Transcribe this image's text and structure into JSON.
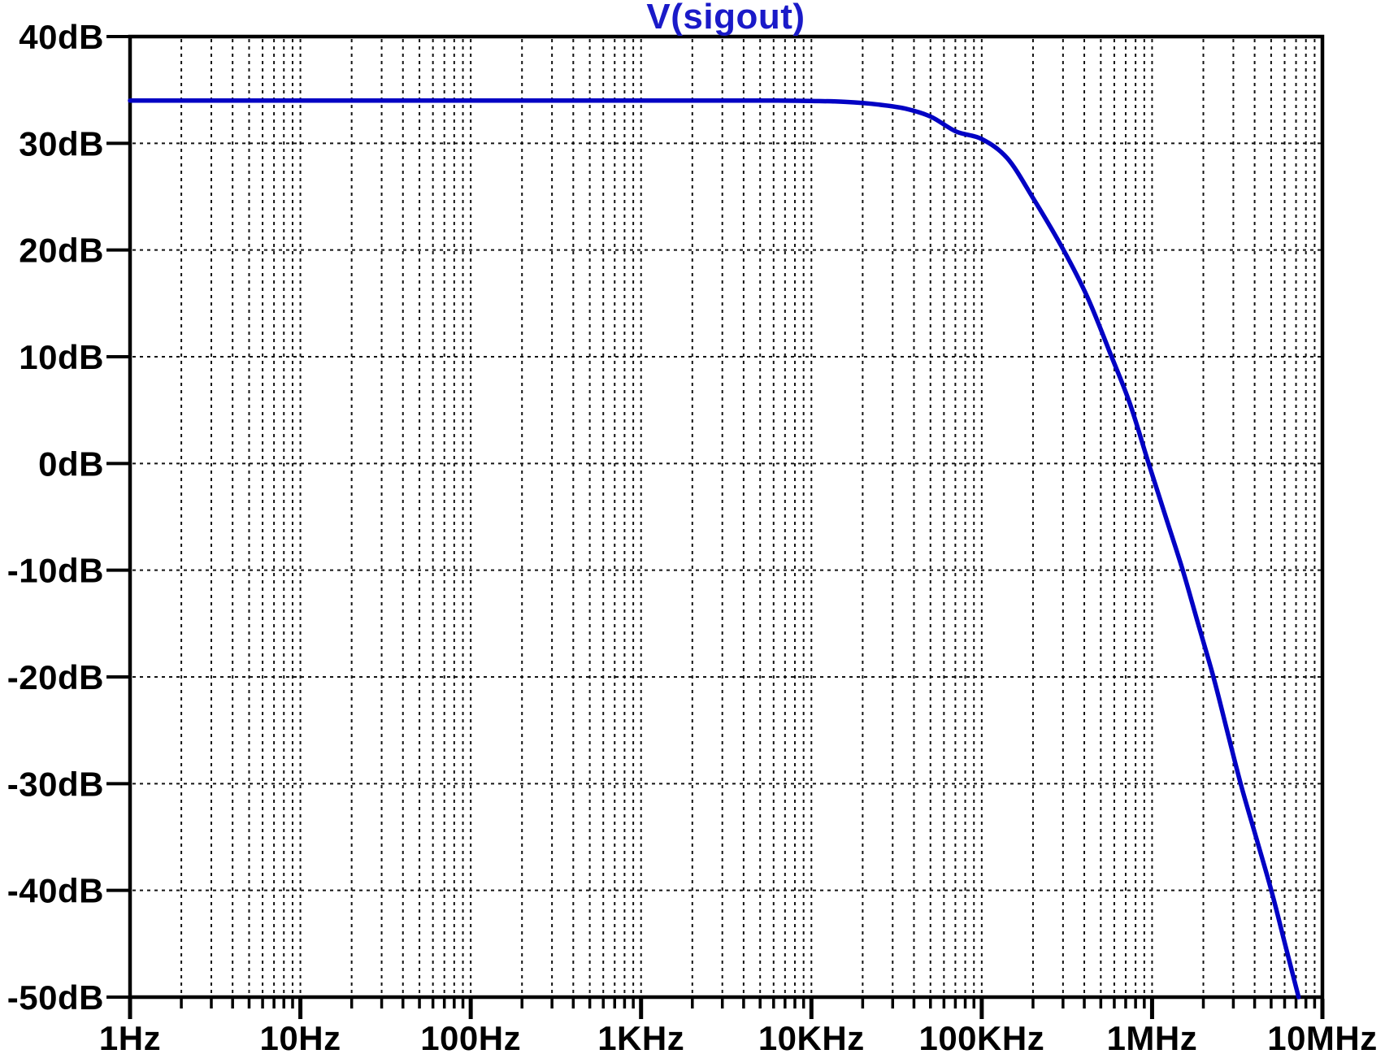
{
  "window": {
    "background": "#ffffff"
  },
  "colors": {
    "trace": "#0202c4",
    "title": "#1a1ac8",
    "grid": "#141414",
    "border": "#000000",
    "tick": "#000000",
    "label_text": "#000000",
    "background": "#ffffff"
  },
  "chart_data": {
    "type": "line",
    "title": "V(sigout)",
    "legend_position": "top-center-title",
    "grid": "on",
    "x_axis": {
      "scale": "log",
      "unit": "Hz",
      "min_log10": 0,
      "max_log10": 7,
      "tick_labels": [
        "1Hz",
        "10Hz",
        "100Hz",
        "1KHz",
        "10KHz",
        "100KHz",
        "1MHz",
        "10MHz"
      ],
      "minor_tick_multipliers": [
        2,
        3,
        4,
        5,
        6,
        7,
        8,
        9
      ]
    },
    "y_axis": {
      "unit": "dB",
      "min": -50,
      "max": 40,
      "step": 10,
      "tick_labels": [
        "40dB",
        "30dB",
        "20dB",
        "10dB",
        "0dB",
        "-10dB",
        "-20dB",
        "-30dB",
        "-40dB",
        "-50dB"
      ]
    },
    "series": [
      {
        "name": "V(sigout)",
        "color": "#0202c4",
        "passband_gain_db": 34,
        "points_log10hz_db": [
          [
            0.0,
            34.0
          ],
          [
            0.5,
            34.0
          ],
          [
            1.0,
            34.0
          ],
          [
            1.5,
            34.0
          ],
          [
            2.0,
            34.0
          ],
          [
            2.5,
            34.0
          ],
          [
            3.0,
            34.0
          ],
          [
            3.5,
            34.0
          ],
          [
            3.8,
            34.0
          ],
          [
            4.0,
            33.97
          ],
          [
            4.2,
            33.88
          ],
          [
            4.4,
            33.62
          ],
          [
            4.55,
            33.25
          ],
          [
            4.7,
            32.5
          ],
          [
            4.85,
            31.1
          ],
          [
            5.0,
            30.4
          ],
          [
            5.15,
            28.6
          ],
          [
            5.3,
            24.9
          ],
          [
            5.48,
            20.0
          ],
          [
            5.62,
            15.6
          ],
          [
            5.76,
            10.1
          ],
          [
            5.87,
            5.6
          ],
          [
            5.98,
            0.0
          ],
          [
            6.08,
            -5.0
          ],
          [
            6.18,
            -10.0
          ],
          [
            6.27,
            -15.0
          ],
          [
            6.36,
            -20.0
          ],
          [
            6.44,
            -25.0
          ],
          [
            6.52,
            -30.0
          ],
          [
            6.61,
            -35.0
          ],
          [
            6.7,
            -40.0
          ],
          [
            6.78,
            -45.0
          ],
          [
            6.86,
            -50.0
          ]
        ]
      }
    ]
  }
}
